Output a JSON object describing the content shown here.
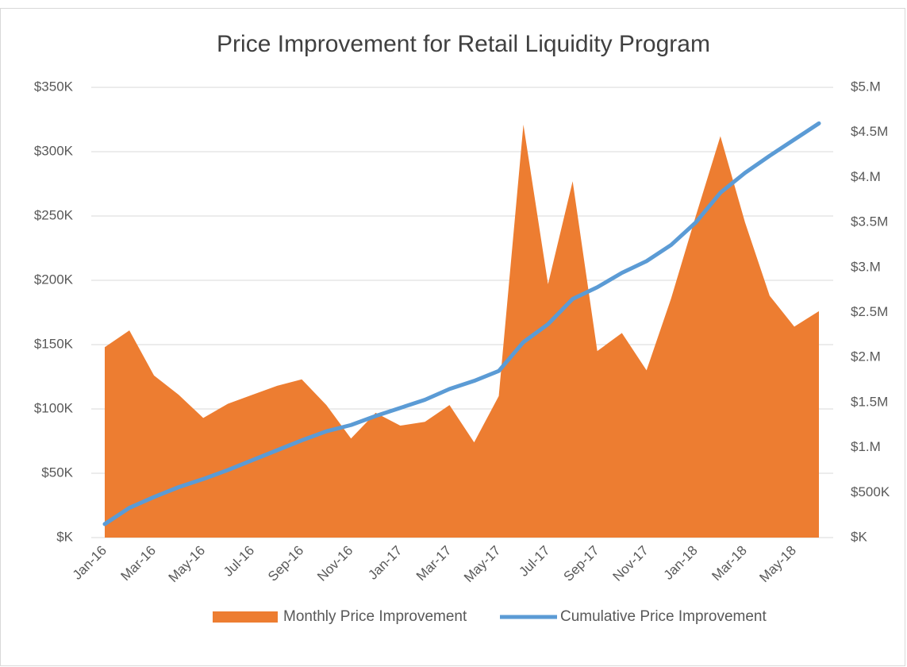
{
  "chart_data": {
    "type": "area-line",
    "title": "Price Improvement for Retail Liquidity Program",
    "categories": [
      "Jan-16",
      null,
      "Mar-16",
      null,
      "May-16",
      null,
      "Jul-16",
      null,
      "Sep-16",
      null,
      "Nov-16",
      null,
      "Jan-17",
      null,
      "Mar-17",
      null,
      "May-17",
      null,
      "Jul-17",
      null,
      "Sep-17",
      null,
      "Nov-17",
      null,
      "Jan-18",
      null,
      "Mar-18",
      null,
      "May-18",
      null
    ],
    "series": [
      {
        "name": "Monthly Price Improvement",
        "color": "#ed7d31",
        "kind": "area",
        "axis": "y",
        "values": [
          148000,
          161000,
          126000,
          111000,
          93000,
          104000,
          111000,
          118000,
          123000,
          103000,
          77000,
          97000,
          87000,
          90000,
          103000,
          74000,
          110000,
          321000,
          197000,
          277000,
          145000,
          159000,
          130000,
          186000,
          250000,
          312000,
          245000,
          188000,
          164000,
          176000
        ]
      },
      {
        "name": "Cumulative Price Improvement",
        "color": "#5b9bd5",
        "kind": "line",
        "axis": "y2",
        "values": [
          150000,
          330000,
          450000,
          560000,
          650000,
          750000,
          860000,
          970000,
          1080000,
          1180000,
          1250000,
          1350000,
          1440000,
          1530000,
          1650000,
          1740000,
          1850000,
          2170000,
          2370000,
          2650000,
          2780000,
          2940000,
          3070000,
          3250000,
          3500000,
          3830000,
          4050000,
          4240000,
          4420000,
          4600000
        ]
      }
    ],
    "ylim": [
      0,
      350000
    ],
    "yticks": [
      {
        "value": 0,
        "label": "$K"
      },
      {
        "value": 50000,
        "label": "$50K"
      },
      {
        "value": 100000,
        "label": "$100K"
      },
      {
        "value": 150000,
        "label": "$150K"
      },
      {
        "value": 200000,
        "label": "$200K"
      },
      {
        "value": 250000,
        "label": "$250K"
      },
      {
        "value": 300000,
        "label": "$300K"
      },
      {
        "value": 350000,
        "label": "$350K"
      }
    ],
    "y2lim": [
      0,
      5000000
    ],
    "y2ticks": [
      {
        "value": 0,
        "label": "$K"
      },
      {
        "value": 500000,
        "label": "$500K"
      },
      {
        "value": 1000000,
        "label": "$1.M"
      },
      {
        "value": 1500000,
        "label": "$1.5M"
      },
      {
        "value": 2000000,
        "label": "$2.M"
      },
      {
        "value": 2500000,
        "label": "$2.5M"
      },
      {
        "value": 3000000,
        "label": "$3.M"
      },
      {
        "value": 3500000,
        "label": "$3.5M"
      },
      {
        "value": 4000000,
        "label": "$4.M"
      },
      {
        "value": 4500000,
        "label": "$4.5M"
      },
      {
        "value": 5000000,
        "label": "$5.M"
      }
    ],
    "grid": true,
    "legend": "bottom"
  }
}
